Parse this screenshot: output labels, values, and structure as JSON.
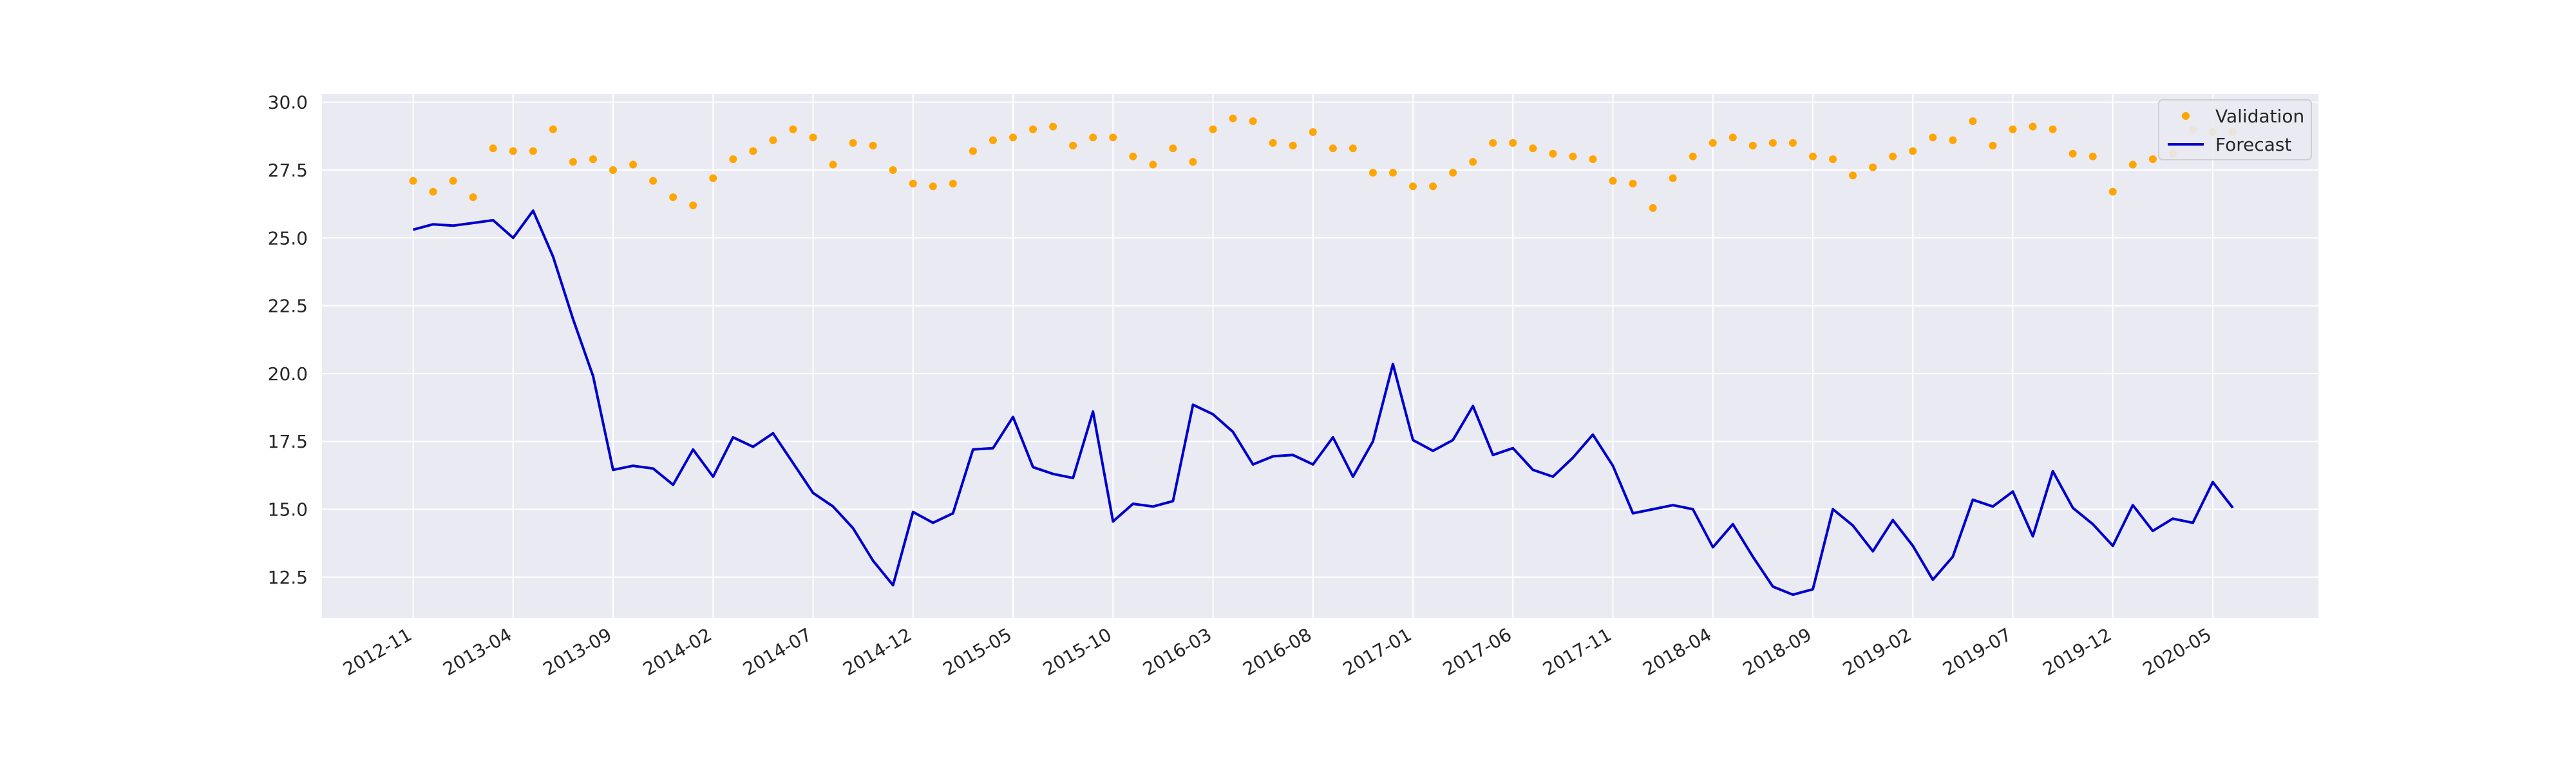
{
  "chart_data": {
    "type": "line",
    "title": "",
    "xlabel": "",
    "ylabel": "",
    "ylim": [
      11.0,
      30.3
    ],
    "yticks": [
      "12.5",
      "15.0",
      "17.5",
      "20.0",
      "22.5",
      "25.0",
      "27.5",
      "30.0"
    ],
    "xticks": [
      "2012-11",
      "2013-04",
      "2013-09",
      "2014-02",
      "2014-07",
      "2014-12",
      "2015-05",
      "2015-10",
      "2016-03",
      "2016-08",
      "2017-01",
      "2017-06",
      "2017-11",
      "2018-04",
      "2018-09",
      "2019-02",
      "2019-07",
      "2019-12",
      "2020-05"
    ],
    "grid": true,
    "legend_position": "top-right",
    "colors": {
      "validation": "#ffa500",
      "forecast": "#0000cd",
      "background": "#eaeaf2",
      "grid": "#ffffff"
    },
    "series": [
      {
        "name": "Validation",
        "style": "points",
        "start": "2012-11",
        "values": [
          27.1,
          26.7,
          27.1,
          26.5,
          28.3,
          28.2,
          28.2,
          29.0,
          27.8,
          27.9,
          27.5,
          27.7,
          27.1,
          26.5,
          26.2,
          27.2,
          27.9,
          28.2,
          28.6,
          29.0,
          28.7,
          27.7,
          28.5,
          28.4,
          27.5,
          27.0,
          26.9,
          27.0,
          28.2,
          28.6,
          28.7,
          29.0,
          29.1,
          28.4,
          28.7,
          28.7,
          28.0,
          27.7,
          28.3,
          27.8,
          29.0,
          29.4,
          29.3,
          28.5,
          28.4,
          28.9,
          28.3,
          28.3,
          27.4,
          27.4,
          26.9,
          26.9,
          27.4,
          27.8,
          28.5,
          28.5,
          28.3,
          28.1,
          28.0,
          27.9,
          27.1,
          27.0,
          26.1,
          27.2,
          28.0,
          28.5,
          28.7,
          28.4,
          28.5,
          28.5,
          28.0,
          27.9,
          27.3,
          27.6,
          28.0,
          28.2,
          28.7,
          28.6,
          29.3,
          28.4,
          29.0,
          29.1,
          29.0,
          28.1,
          28.0,
          26.7,
          27.7,
          27.9,
          28.1,
          29.0,
          28.9,
          28.9
        ]
      },
      {
        "name": "Forecast",
        "style": "line",
        "start": "2012-11",
        "values": [
          25.3,
          25.5,
          25.45,
          25.55,
          25.65,
          25.0,
          26.0,
          24.3,
          22.0,
          19.9,
          16.45,
          16.6,
          16.5,
          15.9,
          17.2,
          16.2,
          17.65,
          17.3,
          17.8,
          16.7,
          15.6,
          15.1,
          14.3,
          13.1,
          12.2,
          14.9,
          14.5,
          14.85,
          17.2,
          17.25,
          18.4,
          16.55,
          16.3,
          16.15,
          18.6,
          14.55,
          15.2,
          15.1,
          15.3,
          18.85,
          18.5,
          17.85,
          16.65,
          16.95,
          17.0,
          16.65,
          17.65,
          16.2,
          17.5,
          20.35,
          17.55,
          17.15,
          17.55,
          18.8,
          17.0,
          17.25,
          16.45,
          16.2,
          16.9,
          17.75,
          16.6,
          14.85,
          15.0,
          15.15,
          15.0,
          13.6,
          14.45,
          13.25,
          12.15,
          11.85,
          12.05,
          15.0,
          14.4,
          13.45,
          14.6,
          13.65,
          12.4,
          13.25,
          15.35,
          15.1,
          15.65,
          14.0,
          16.4,
          15.05,
          14.45,
          13.65,
          15.15,
          14.2,
          14.65,
          14.5,
          16.0,
          15.05
        ]
      }
    ]
  }
}
